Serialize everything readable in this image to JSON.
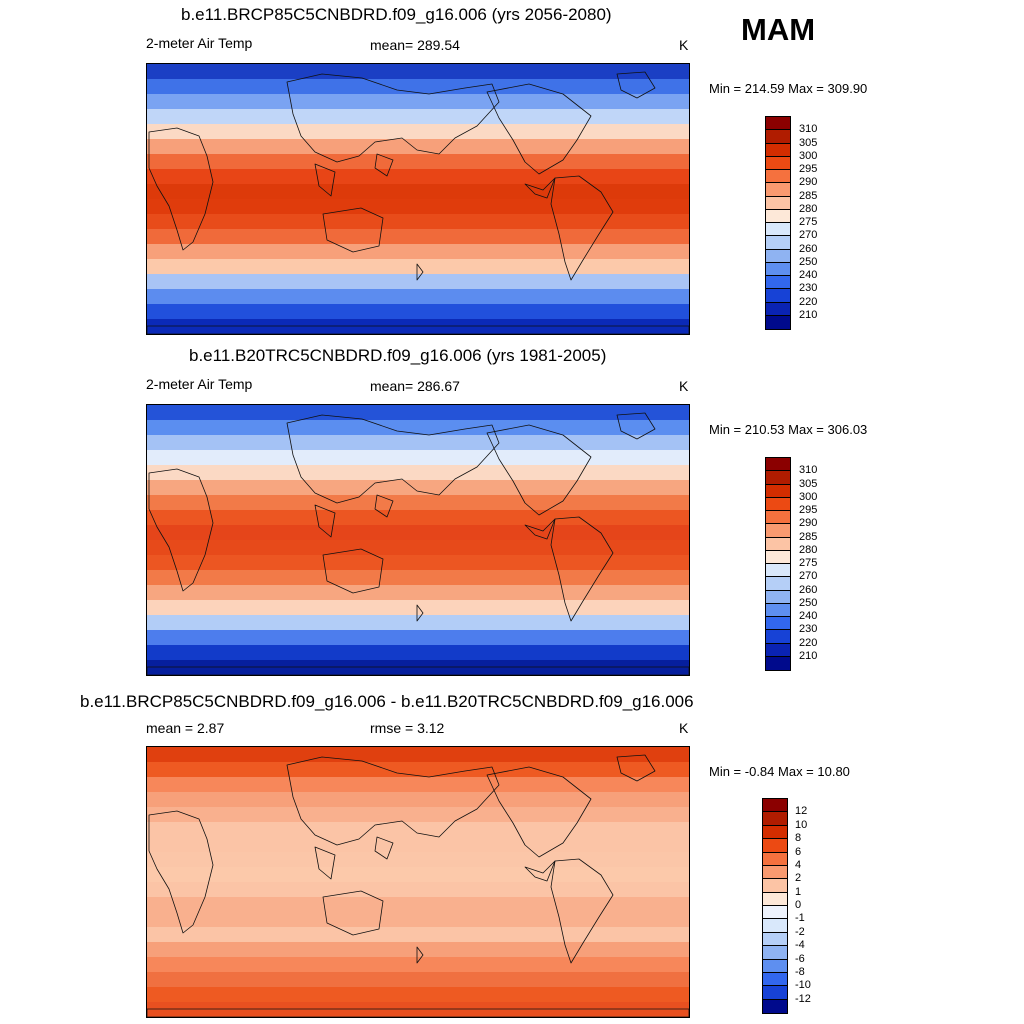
{
  "season": "MAM",
  "panels": [
    {
      "title": "b.e11.BRCP85C5CNBDRD.f09_g16.006 (yrs 2056-2080)",
      "left_label": "2-meter Air Temp",
      "center_label": "mean= 289.54",
      "units": "K",
      "minmax": "Min = 214.59 Max = 309.90",
      "colorbar": {
        "ticks": [
          "310",
          "305",
          "300",
          "295",
          "290",
          "285",
          "280",
          "275",
          "270",
          "260",
          "250",
          "240",
          "230",
          "220",
          "210"
        ],
        "colors": [
          "#8b0000",
          "#b01c00",
          "#d32d00",
          "#ec4a13",
          "#f5713e",
          "#f99a70",
          "#fcc4a5",
          "#fde8d8",
          "#d9e8fb",
          "#b5cff7",
          "#8fb3f2",
          "#5e8ff0",
          "#3267ee",
          "#1742d6",
          "#0a23b3",
          "#000a8c"
        ]
      },
      "bands": [
        "#1b3fc4",
        "#3f72e8",
        "#7aa3f2",
        "#c0d6f8",
        "#fbd9c4",
        "#f7a07a",
        "#f06a3a",
        "#e84516",
        "#dd3a0a",
        "#e03c0c",
        "#e84c1a",
        "#f06a3a",
        "#f7a07a",
        "#fcc9aa",
        "#a9c4f5",
        "#5c8cef",
        "#2150dc",
        "#0b2ab8"
      ]
    },
    {
      "title": "b.e11.B20TRC5CNBDRD.f09_g16.006 (yrs 1981-2005)",
      "left_label": "2-meter Air Temp",
      "center_label": "mean= 286.67",
      "units": "K",
      "minmax": "Min = 210.53 Max = 306.03",
      "colorbar": {
        "ticks": [
          "310",
          "305",
          "300",
          "295",
          "290",
          "285",
          "280",
          "275",
          "270",
          "260",
          "250",
          "240",
          "230",
          "220",
          "210"
        ],
        "colors": [
          "#8b0000",
          "#b01c00",
          "#d32d00",
          "#ec4a13",
          "#f5713e",
          "#f99a70",
          "#fcc4a5",
          "#fde8d8",
          "#d9e8fb",
          "#b5cff7",
          "#8fb3f2",
          "#5e8ff0",
          "#3267ee",
          "#1742d6",
          "#0a23b3",
          "#000a8c"
        ]
      },
      "bands": [
        "#2453d8",
        "#5b8ef0",
        "#a4c2f5",
        "#e2ecfb",
        "#fbd9c4",
        "#f7a680",
        "#f27a48",
        "#ec5622",
        "#e5451a",
        "#e74a1a",
        "#ec5622",
        "#f27a48",
        "#f7a680",
        "#fcd3bb",
        "#b2cdf7",
        "#4d7ded",
        "#123bc9",
        "#061f9e"
      ]
    },
    {
      "title": "b.e11.BRCP85C5CNBDRD.f09_g16.006 - b.e11.B20TRC5CNBDRD.f09_g16.006",
      "left_label": "mean =   2.87",
      "center_label": "rmse =   3.12",
      "units": "K",
      "minmax": "Min =  -0.84 Max =  10.80",
      "colorbar": {
        "ticks": [
          "12",
          "10",
          "8",
          "6",
          "4",
          "2",
          "1",
          "0",
          "-1",
          "-2",
          "-4",
          "-6",
          "-8",
          "-10",
          "-12"
        ],
        "colors": [
          "#8b0000",
          "#b01c00",
          "#d32d00",
          "#ec4a13",
          "#f5713e",
          "#f99a70",
          "#fcc4a5",
          "#fde8d8",
          "#eef3fd",
          "#d9e8fb",
          "#b5cff7",
          "#8fb3f2",
          "#5e8ff0",
          "#3267ee",
          "#1742d6",
          "#000a8c"
        ]
      },
      "bands": [
        "#e0400f",
        "#ee5a22",
        "#f7875a",
        "#f7a07a",
        "#f9b08e",
        "#fbc4a6",
        "#fbc4a6",
        "#fbc6a8",
        "#fcc9aa",
        "#fbc4a6",
        "#f9b08e",
        "#f9b08e",
        "#fbc4a6",
        "#f7a07a",
        "#f7875a",
        "#f07040",
        "#ee5a22",
        "#e85020"
      ]
    }
  ]
}
